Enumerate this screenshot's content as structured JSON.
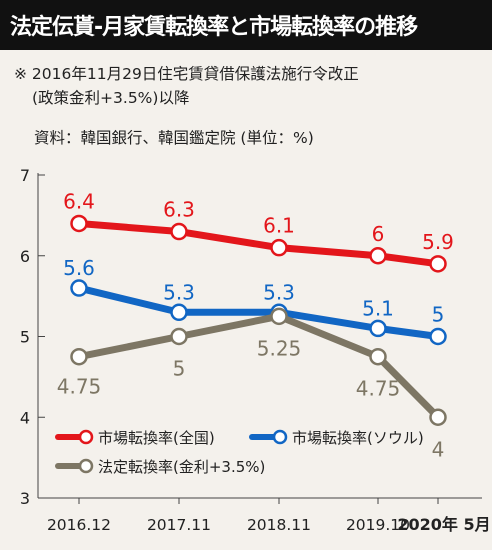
{
  "header": {
    "title": "法定伝貰-月家賃転換率と市場転換率の推移"
  },
  "notes": {
    "line1": "※ 2016年11月29日住宅賃貸借保護法施行令改正",
    "line2": "(政策金利+3.5%)以降",
    "source": "資料：韓国銀行、韓国鑑定院 (単位：%)"
  },
  "chart_data": {
    "type": "line",
    "categories": [
      "2016.12",
      "2017.11",
      "2018.11",
      "2019.10",
      "2020年 5月"
    ],
    "y_ticks": [
      "7",
      "6",
      "5",
      "4",
      "3"
    ],
    "ylim": [
      3,
      7
    ],
    "grid": false,
    "legend_placement": "bottom-left",
    "series": [
      {
        "name": "市場転換率(全国)",
        "color": "#e3161b",
        "values": [
          6.4,
          6.3,
          6.1,
          6.0,
          5.9
        ],
        "labels": [
          "6.4",
          "6.3",
          "6.1",
          "6",
          "5.9"
        ],
        "x_index": [
          0,
          1,
          2,
          3,
          4
        ]
      },
      {
        "name": "市場転換率(ソウル)",
        "color": "#1166c4",
        "values": [
          5.6,
          5.3,
          5.3,
          5.1,
          5.0
        ],
        "labels": [
          "5.6",
          "5.3",
          "5.3",
          "5.1",
          "5"
        ],
        "x_index": [
          0,
          1,
          2,
          3,
          4
        ]
      },
      {
        "name": "法定転換率(金利+3.5%)",
        "color": "#7d7664",
        "values": [
          4.75,
          5.0,
          5.25,
          4.75,
          4.0
        ],
        "labels": [
          "4.75",
          "5",
          "5.25",
          "4.75",
          "4"
        ],
        "x_index": [
          0,
          1,
          2,
          3,
          4
        ]
      }
    ]
  }
}
